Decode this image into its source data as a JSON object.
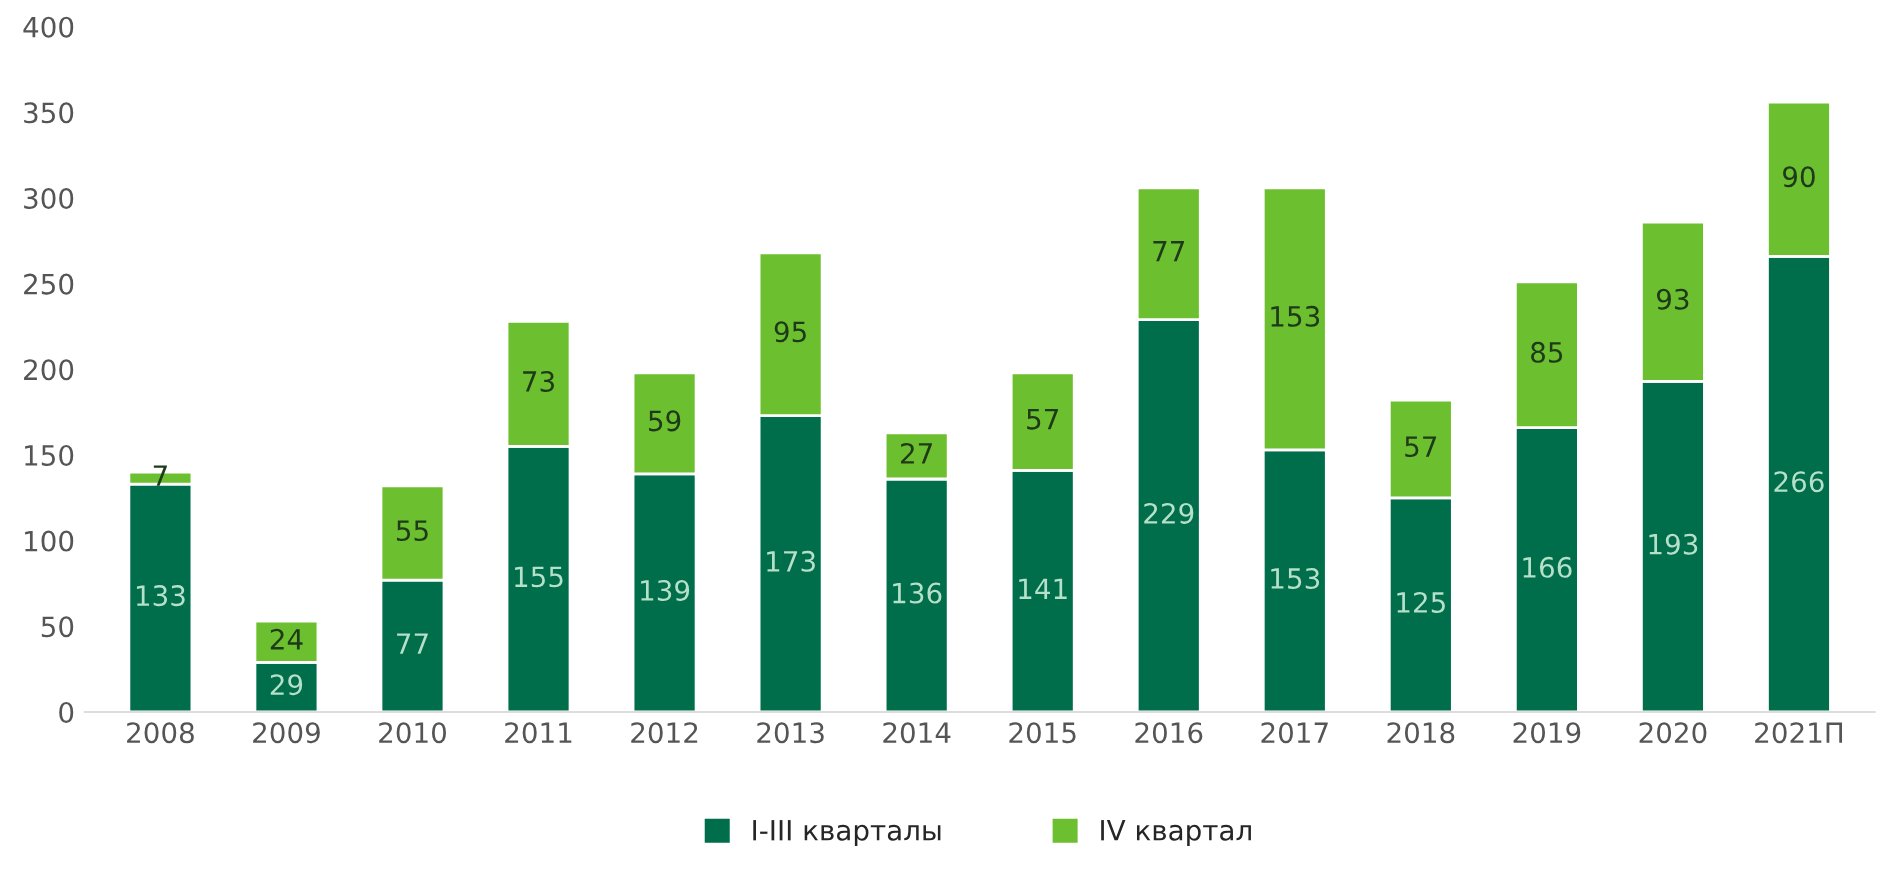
{
  "chart_data": {
    "type": "bar",
    "stacked": true,
    "data_labels": true,
    "legend": "bottom",
    "grid": false,
    "categories": [
      "2008",
      "2009",
      "2010",
      "2011",
      "2012",
      "2013",
      "2014",
      "2015",
      "2016",
      "2017",
      "2018",
      "2019",
      "2020",
      "2021П"
    ],
    "series": [
      {
        "name": "I-III кварталы",
        "color": "#006d4b",
        "values": [
          133,
          29,
          77,
          155,
          139,
          173,
          136,
          141,
          229,
          153,
          125,
          166,
          193,
          266
        ]
      },
      {
        "name": "IV квартал",
        "color": "#6cbf2e",
        "values": [
          7,
          24,
          55,
          73,
          59,
          95,
          27,
          57,
          77,
          153,
          57,
          85,
          93,
          90
        ]
      }
    ],
    "ylim": [
      0,
      400
    ],
    "yticks": [
      0,
      50,
      100,
      150,
      200,
      250,
      300,
      350,
      400
    ]
  }
}
